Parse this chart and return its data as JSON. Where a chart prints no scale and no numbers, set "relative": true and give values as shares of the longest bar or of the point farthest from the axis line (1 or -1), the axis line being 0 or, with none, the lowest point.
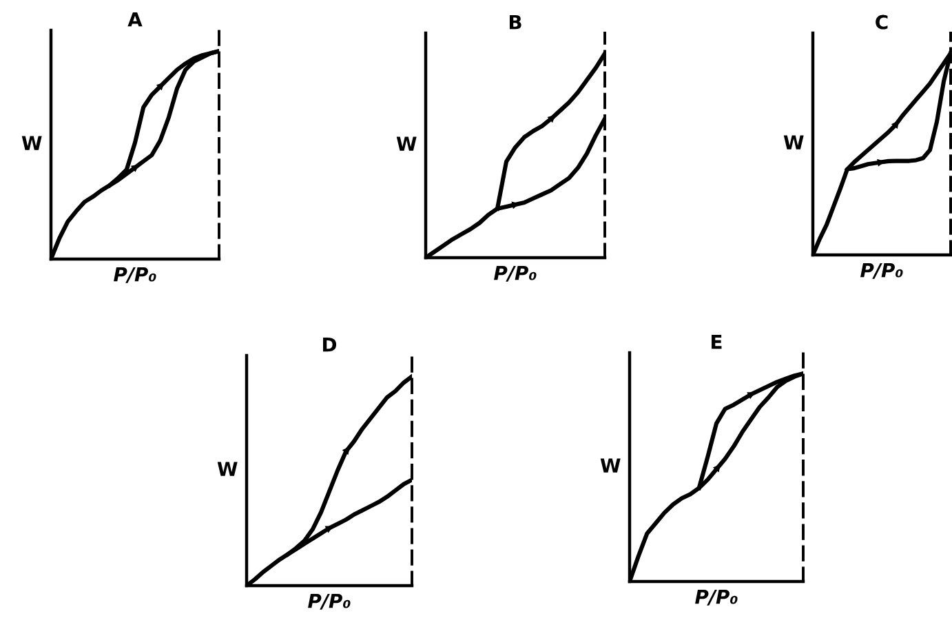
{
  "chart_data": [
    {
      "type": "line",
      "title": "A",
      "xlabel": "P/P₀",
      "ylabel": "W",
      "relative": true,
      "tick_labels": false,
      "categories": [
        null,
        null,
        null,
        null,
        null,
        null,
        null,
        null,
        null,
        null,
        null,
        null,
        null,
        null,
        null,
        null,
        null,
        null,
        null,
        null,
        null
      ],
      "series": [
        {
          "color": "#000000",
          "values": [
            0,
            0.1,
            0.18,
            0.23,
            0.275,
            0.3,
            0.33,
            0.355,
            0.38,
            0.41,
            0.44,
            0.47,
            0.5,
            0.57,
            0.68,
            0.82,
            0.91,
            0.95,
            0.97,
            0.99,
            1
          ]
        },
        {
          "color": "#000000",
          "values": [
            null,
            null,
            null,
            null,
            null,
            null,
            null,
            0.355,
            0.39,
            0.43,
            0.56,
            0.73,
            0.79,
            0.83,
            0.87,
            0.91,
            0.94,
            0.965,
            0.98,
            0.99,
            1
          ]
        }
      ]
    },
    {
      "type": "line",
      "title": "B",
      "xlabel": "P/P₀",
      "ylabel": "W",
      "relative": true,
      "tick_labels": false,
      "categories": [
        null,
        null,
        null,
        null,
        null,
        null,
        null,
        null,
        null,
        null,
        null,
        null,
        null,
        null,
        null,
        null,
        null,
        null,
        null,
        null,
        null
      ],
      "series": [
        {
          "color": "#000000",
          "values": [
            0,
            0.03,
            0.06,
            0.09,
            0.115,
            0.14,
            0.17,
            0.21,
            0.24,
            0.25,
            0.26,
            0.27,
            0.29,
            0.31,
            0.33,
            0.36,
            0.39,
            0.44,
            0.51,
            0.6,
            0.68
          ]
        },
        {
          "color": "#000000",
          "values": [
            null,
            null,
            null,
            null,
            null,
            null,
            null,
            null,
            0.24,
            0.47,
            0.54,
            0.59,
            0.62,
            0.645,
            0.68,
            0.72,
            0.76,
            0.81,
            0.87,
            0.93,
            1
          ]
        }
      ]
    },
    {
      "type": "line",
      "title": "C",
      "xlabel": "P/P₀",
      "ylabel": "W",
      "relative": true,
      "tick_labels": false,
      "categories": [
        null,
        null,
        null,
        null,
        null,
        null,
        null,
        null,
        null,
        null,
        null,
        null,
        null,
        null,
        null,
        null,
        null,
        null,
        null,
        null,
        null
      ],
      "series": [
        {
          "color": "#000000",
          "values": [
            0,
            0.08,
            0.15,
            0.24,
            0.33,
            0.425,
            0.43,
            0.44,
            0.45,
            0.455,
            0.46,
            0.465,
            0.466,
            0.466,
            0.466,
            0.47,
            0.48,
            0.52,
            0.66,
            0.86,
            1
          ]
        },
        {
          "color": "#000000",
          "values": [
            null,
            null,
            null,
            null,
            null,
            0.425,
            0.46,
            0.49,
            0.52,
            0.55,
            0.58,
            0.61,
            0.644,
            0.69,
            0.73,
            0.77,
            0.81,
            0.85,
            0.9,
            0.95,
            1
          ]
        }
      ]
    },
    {
      "type": "line",
      "title": "D",
      "xlabel": "P/P₀",
      "ylabel": "W",
      "relative": true,
      "tick_labels": false,
      "categories": [
        null,
        null,
        null,
        null,
        null,
        null,
        null,
        null,
        null,
        null,
        null,
        null,
        null,
        null,
        null,
        null,
        null,
        null,
        null,
        null,
        null
      ],
      "series": [
        {
          "color": "#000000",
          "values": [
            0,
            0.03,
            0.065,
            0.095,
            0.125,
            0.15,
            0.175,
            0.2,
            0.225,
            0.25,
            0.275,
            0.295,
            0.315,
            0.34,
            0.36,
            0.38,
            0.4,
            0.425,
            0.455,
            0.485,
            0.506
          ]
        },
        {
          "color": "#000000",
          "values": [
            null,
            null,
            null,
            null,
            null,
            0.15,
            0.18,
            0.215,
            0.27,
            0.35,
            0.45,
            0.55,
            0.64,
            0.69,
            0.75,
            0.8,
            0.85,
            0.9,
            0.93,
            0.97,
            1
          ]
        }
      ]
    },
    {
      "type": "line",
      "title": "E",
      "xlabel": "P/P₀",
      "ylabel": "W",
      "relative": true,
      "tick_labels": false,
      "categories": [
        null,
        null,
        null,
        null,
        null,
        null,
        null,
        null,
        null,
        null,
        null,
        null,
        null,
        null,
        null,
        null,
        null,
        null,
        null,
        null,
        null
      ],
      "series": [
        {
          "color": "#000000",
          "values": [
            0,
            0.12,
            0.23,
            0.28,
            0.33,
            0.37,
            0.4,
            0.42,
            0.45,
            0.49,
            0.54,
            0.59,
            0.65,
            0.72,
            0.78,
            0.84,
            0.885,
            0.935,
            0.965,
            0.985,
            1
          ]
        },
        {
          "color": "#000000",
          "values": [
            null,
            null,
            null,
            null,
            null,
            null,
            null,
            null,
            0.45,
            0.6,
            0.76,
            0.83,
            0.85,
            0.875,
            0.9,
            0.92,
            0.94,
            0.96,
            0.975,
            0.99,
            1
          ]
        }
      ]
    }
  ]
}
